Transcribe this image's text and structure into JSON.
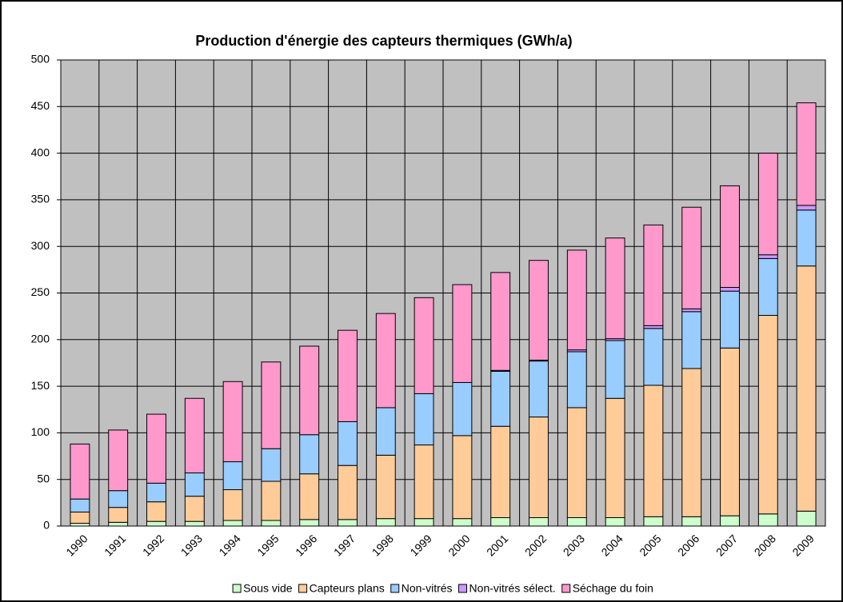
{
  "chart_data": {
    "type": "stacked_bar",
    "title": "Production d'énergie des capteurs thermiques (GWh/a)",
    "categories": [
      "1990",
      "1991",
      "1992",
      "1993",
      "1994",
      "1995",
      "1996",
      "1997",
      "1998",
      "1999",
      "2000",
      "2001",
      "2002",
      "2003",
      "2004",
      "2005",
      "2006",
      "2007",
      "2008",
      "2009"
    ],
    "series": [
      {
        "name": "Sous vide",
        "color": "#ccffcc",
        "values": [
          3,
          4,
          5,
          5,
          6,
          6,
          7,
          7,
          8,
          8,
          8,
          9,
          9,
          9,
          9,
          10,
          10,
          11,
          13,
          16
        ]
      },
      {
        "name": "Capteurs plans",
        "color": "#ffcc99",
        "values": [
          12,
          16,
          21,
          27,
          33,
          42,
          49,
          58,
          68,
          79,
          89,
          98,
          108,
          118,
          128,
          141,
          159,
          180,
          213,
          263
        ]
      },
      {
        "name": "Non-vitrés",
        "color": "#99ccff",
        "values": [
          14,
          18,
          20,
          25,
          30,
          35,
          42,
          47,
          51,
          55,
          57,
          59,
          60,
          60,
          62,
          61,
          61,
          61,
          61,
          60
        ]
      },
      {
        "name": "Non-vitrés sélect.",
        "color": "#cc99ff",
        "values": [
          0,
          0,
          0,
          0,
          0,
          0,
          0,
          0,
          0,
          0,
          0,
          1,
          1,
          2,
          2,
          3,
          3,
          4,
          4,
          5
        ]
      },
      {
        "name": "Séchage du foin",
        "color": "#ff99cc",
        "values": [
          59,
          65,
          74,
          80,
          86,
          93,
          95,
          98,
          101,
          103,
          105,
          105,
          107,
          107,
          108,
          108,
          109,
          109,
          109,
          110
        ]
      }
    ],
    "ylim": [
      0,
      500
    ],
    "yticks": [
      0,
      50,
      100,
      150,
      200,
      250,
      300,
      350,
      400,
      450,
      500
    ],
    "grid": true,
    "legend": "bottom"
  }
}
